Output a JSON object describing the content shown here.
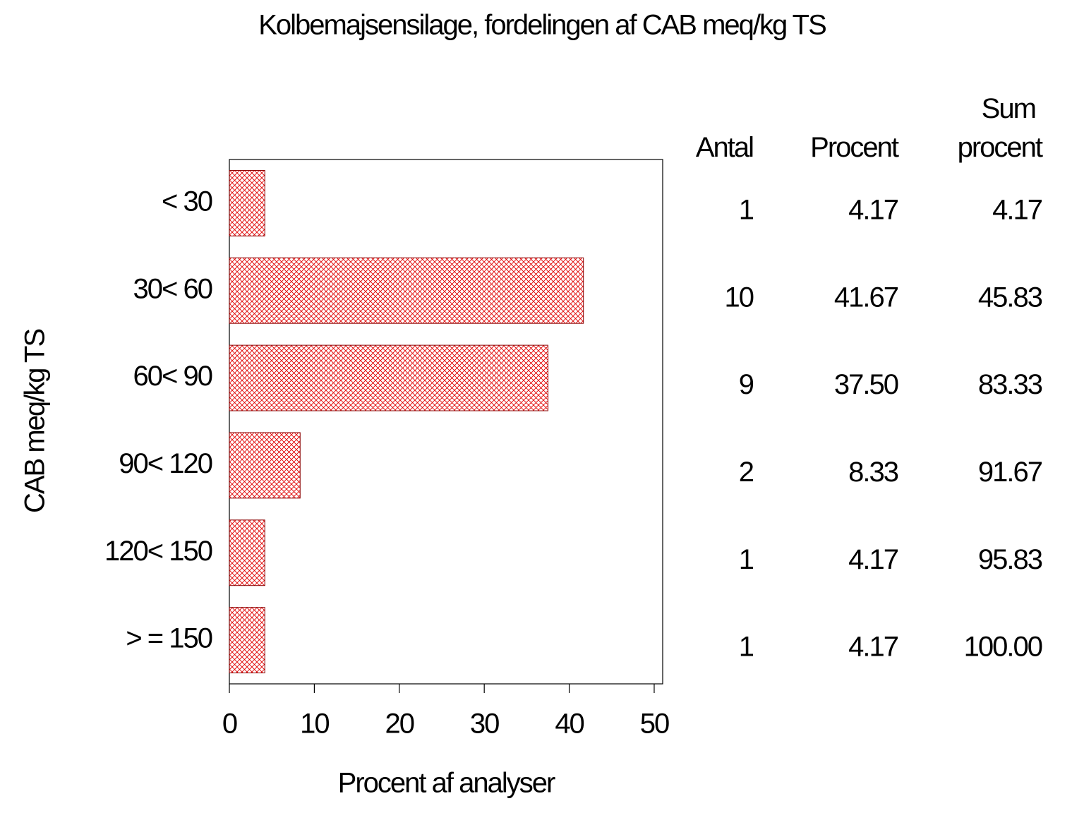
{
  "chart_data": {
    "type": "bar",
    "orientation": "horizontal",
    "title": "Kolbemajsensilage, fordelingen af CAB meq/kg TS",
    "y_label": "CAB meq/kg TS",
    "x_label": "Procent af analyser",
    "categories": [
      "< 30",
      "30< 60",
      "60< 90",
      "90< 120",
      "120< 150",
      "> = 150"
    ],
    "values": [
      4.17,
      41.67,
      37.5,
      8.33,
      4.17,
      4.17
    ],
    "value_labels": [
      "4.17",
      "41.67",
      "37.50",
      "8.33",
      "4.17",
      "4.17"
    ],
    "color": "#e00000",
    "xlim": [
      0,
      51
    ],
    "xticks": [
      0,
      10,
      20,
      30,
      40,
      50
    ],
    "table": {
      "count_header": "Antal",
      "counts": [
        1,
        10,
        9,
        2,
        1,
        1
      ],
      "percent_header": "Procent",
      "cumulative_header": "Sum procent",
      "cumulative": [
        4.17,
        45.83,
        83.33,
        91.67,
        95.83,
        100
      ],
      "cumulative_labels": [
        "4.17",
        "45.83",
        "83.33",
        "91.67",
        "95.83",
        "100.00"
      ]
    }
  }
}
